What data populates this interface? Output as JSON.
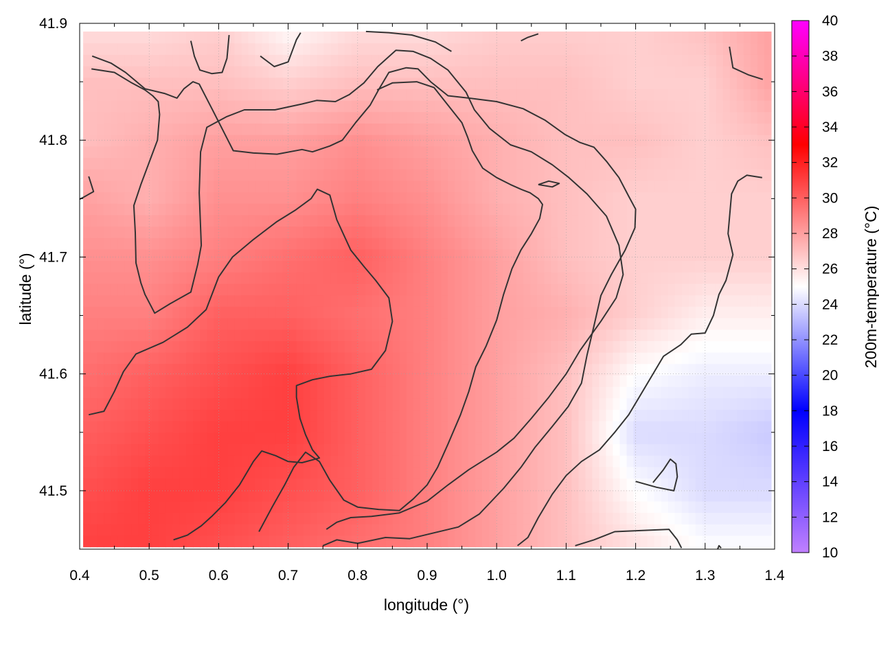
{
  "chart_data": {
    "type": "heatmap",
    "xlabel": "longitude (°)",
    "ylabel": "latitude (°)",
    "colorbar_label": "200m-temperature (°C)",
    "xlim": [
      0.4,
      1.4
    ],
    "ylim": [
      41.45,
      41.9
    ],
    "data_extent": {
      "x": [
        0.405,
        1.395
      ],
      "y": [
        41.452,
        41.893
      ]
    },
    "x_ticks": [
      0.4,
      0.5,
      0.6,
      0.7,
      0.8,
      0.9,
      1.0,
      1.1,
      1.2,
      1.3,
      1.4
    ],
    "x_tick_labels": [
      "0.4",
      "0.5",
      "0.6",
      "0.7",
      "0.8",
      "0.9",
      "1.0",
      "1.1",
      "1.2",
      "1.3",
      "1.4"
    ],
    "y_ticks": [
      41.5,
      41.6,
      41.7,
      41.8,
      41.9
    ],
    "y_tick_labels": [
      "41.5",
      "41.6",
      "41.7",
      "41.8",
      "41.9"
    ],
    "colorbar_range": [
      10,
      40
    ],
    "colorbar_ticks": [
      10,
      12,
      14,
      16,
      18,
      20,
      22,
      24,
      26,
      28,
      30,
      32,
      34,
      36,
      38,
      40
    ],
    "colorbar_tick_labels": [
      "10",
      "12",
      "14",
      "16",
      "18",
      "20",
      "22",
      "24",
      "26",
      "28",
      "30",
      "32",
      "34",
      "36",
      "38",
      "40"
    ],
    "colorbar_stops": [
      {
        "value": 10,
        "color": "#c080ff"
      },
      {
        "value": 18,
        "color": "#0000ff"
      },
      {
        "value": 25,
        "color": "#ffffff"
      },
      {
        "value": 33,
        "color": "#ff0000"
      },
      {
        "value": 40,
        "color": "#ff00ff"
      }
    ],
    "grid": true,
    "contour_color": "#333333",
    "contour_levels_estimated": [
      24,
      26,
      28,
      30
    ],
    "field_estimate": {
      "description": "approx temperature (°C) sampled at lon/lat nodes",
      "lon": [
        0.4,
        0.5,
        0.6,
        0.7,
        0.8,
        0.9,
        1.0,
        1.1,
        1.2,
        1.3,
        1.4
      ],
      "lat": [
        41.9,
        41.85,
        41.8,
        41.75,
        41.7,
        41.65,
        41.6,
        41.55,
        41.5,
        41.45
      ],
      "values": [
        [
          26.0,
          26.0,
          26.5,
          25.0,
          26.0,
          26.0,
          26.5,
          26.5,
          26.5,
          27.0,
          28.0
        ],
        [
          27.0,
          27.0,
          27.0,
          26.5,
          27.0,
          27.0,
          27.0,
          27.0,
          26.5,
          26.5,
          28.0
        ],
        [
          27.0,
          27.5,
          28.0,
          28.0,
          28.5,
          28.0,
          27.5,
          27.0,
          27.0,
          26.5,
          27.0
        ],
        [
          28.0,
          27.5,
          28.5,
          28.5,
          29.0,
          28.5,
          27.5,
          27.0,
          26.5,
          26.5,
          26.5
        ],
        [
          28.5,
          28.5,
          29.0,
          29.5,
          30.0,
          29.0,
          28.0,
          27.0,
          26.5,
          26.5,
          26.5
        ],
        [
          29.0,
          29.0,
          30.0,
          30.0,
          29.5,
          29.0,
          28.0,
          27.5,
          26.5,
          25.5,
          25.5
        ],
        [
          29.5,
          30.0,
          30.5,
          31.0,
          30.0,
          29.0,
          28.0,
          27.0,
          25.0,
          24.5,
          24.5
        ],
        [
          30.0,
          30.5,
          31.0,
          31.0,
          30.0,
          29.0,
          28.0,
          27.0,
          24.0,
          24.0,
          23.5
        ],
        [
          30.5,
          31.0,
          31.0,
          30.5,
          30.0,
          29.0,
          28.0,
          27.0,
          25.0,
          24.0,
          24.0
        ],
        [
          31.0,
          31.0,
          30.5,
          30.0,
          29.5,
          29.0,
          28.0,
          27.0,
          26.0,
          25.0,
          25.0
        ]
      ]
    }
  }
}
